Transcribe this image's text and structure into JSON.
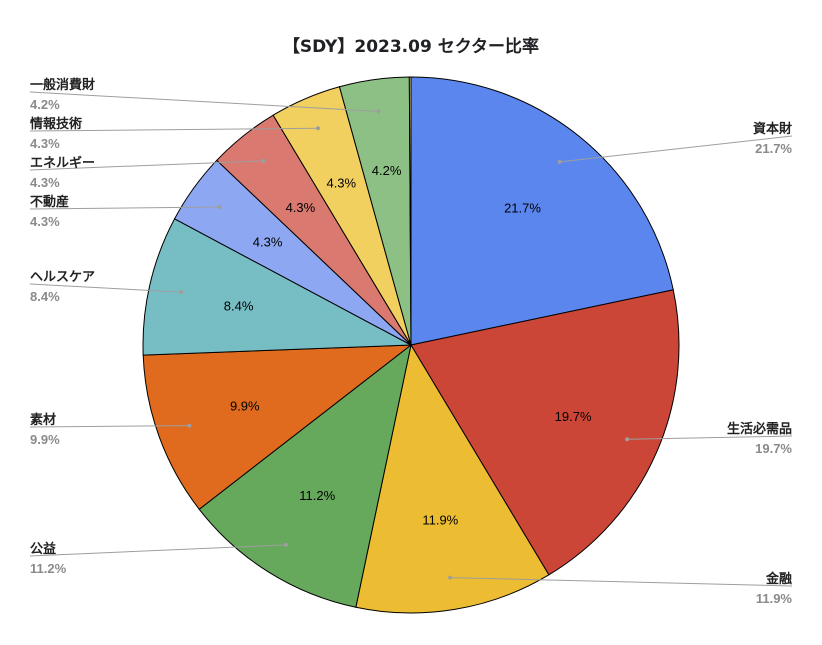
{
  "chart_data": {
    "type": "pie",
    "title": "【SDY】2023.09 セクター比率",
    "start_angle_deg": 0,
    "direction": "clockwise",
    "slices": [
      {
        "name": "資本財",
        "value": 21.7,
        "label": "21.7%",
        "color": "#5b86ee"
      },
      {
        "name": "生活必需品",
        "value": 19.7,
        "label": "19.7%",
        "color": "#cc4638"
      },
      {
        "name": "金融",
        "value": 11.9,
        "label": "11.9%",
        "color": "#ecbc32"
      },
      {
        "name": "公益",
        "value": 11.2,
        "label": "11.2%",
        "color": "#67a95c"
      },
      {
        "name": "素材",
        "value": 9.9,
        "label": "9.9%",
        "color": "#e06b1e"
      },
      {
        "name": "ヘルスケア",
        "value": 8.4,
        "label": "8.4%",
        "color": "#77bec4"
      },
      {
        "name": "不動産",
        "value": 4.3,
        "label": "4.3%",
        "color": "#8ea7f2"
      },
      {
        "name": "エネルギー",
        "value": 4.3,
        "label": "4.3%",
        "color": "#d9796f"
      },
      {
        "name": "情報技術",
        "value": 4.3,
        "label": "4.3%",
        "color": "#f1d060"
      },
      {
        "name": "一般消費財",
        "value": 4.2,
        "label": "4.2%",
        "color": "#8cc084"
      },
      {
        "name": "",
        "value": 0.1,
        "label": "",
        "color": "#f7e7a0"
      }
    ]
  }
}
